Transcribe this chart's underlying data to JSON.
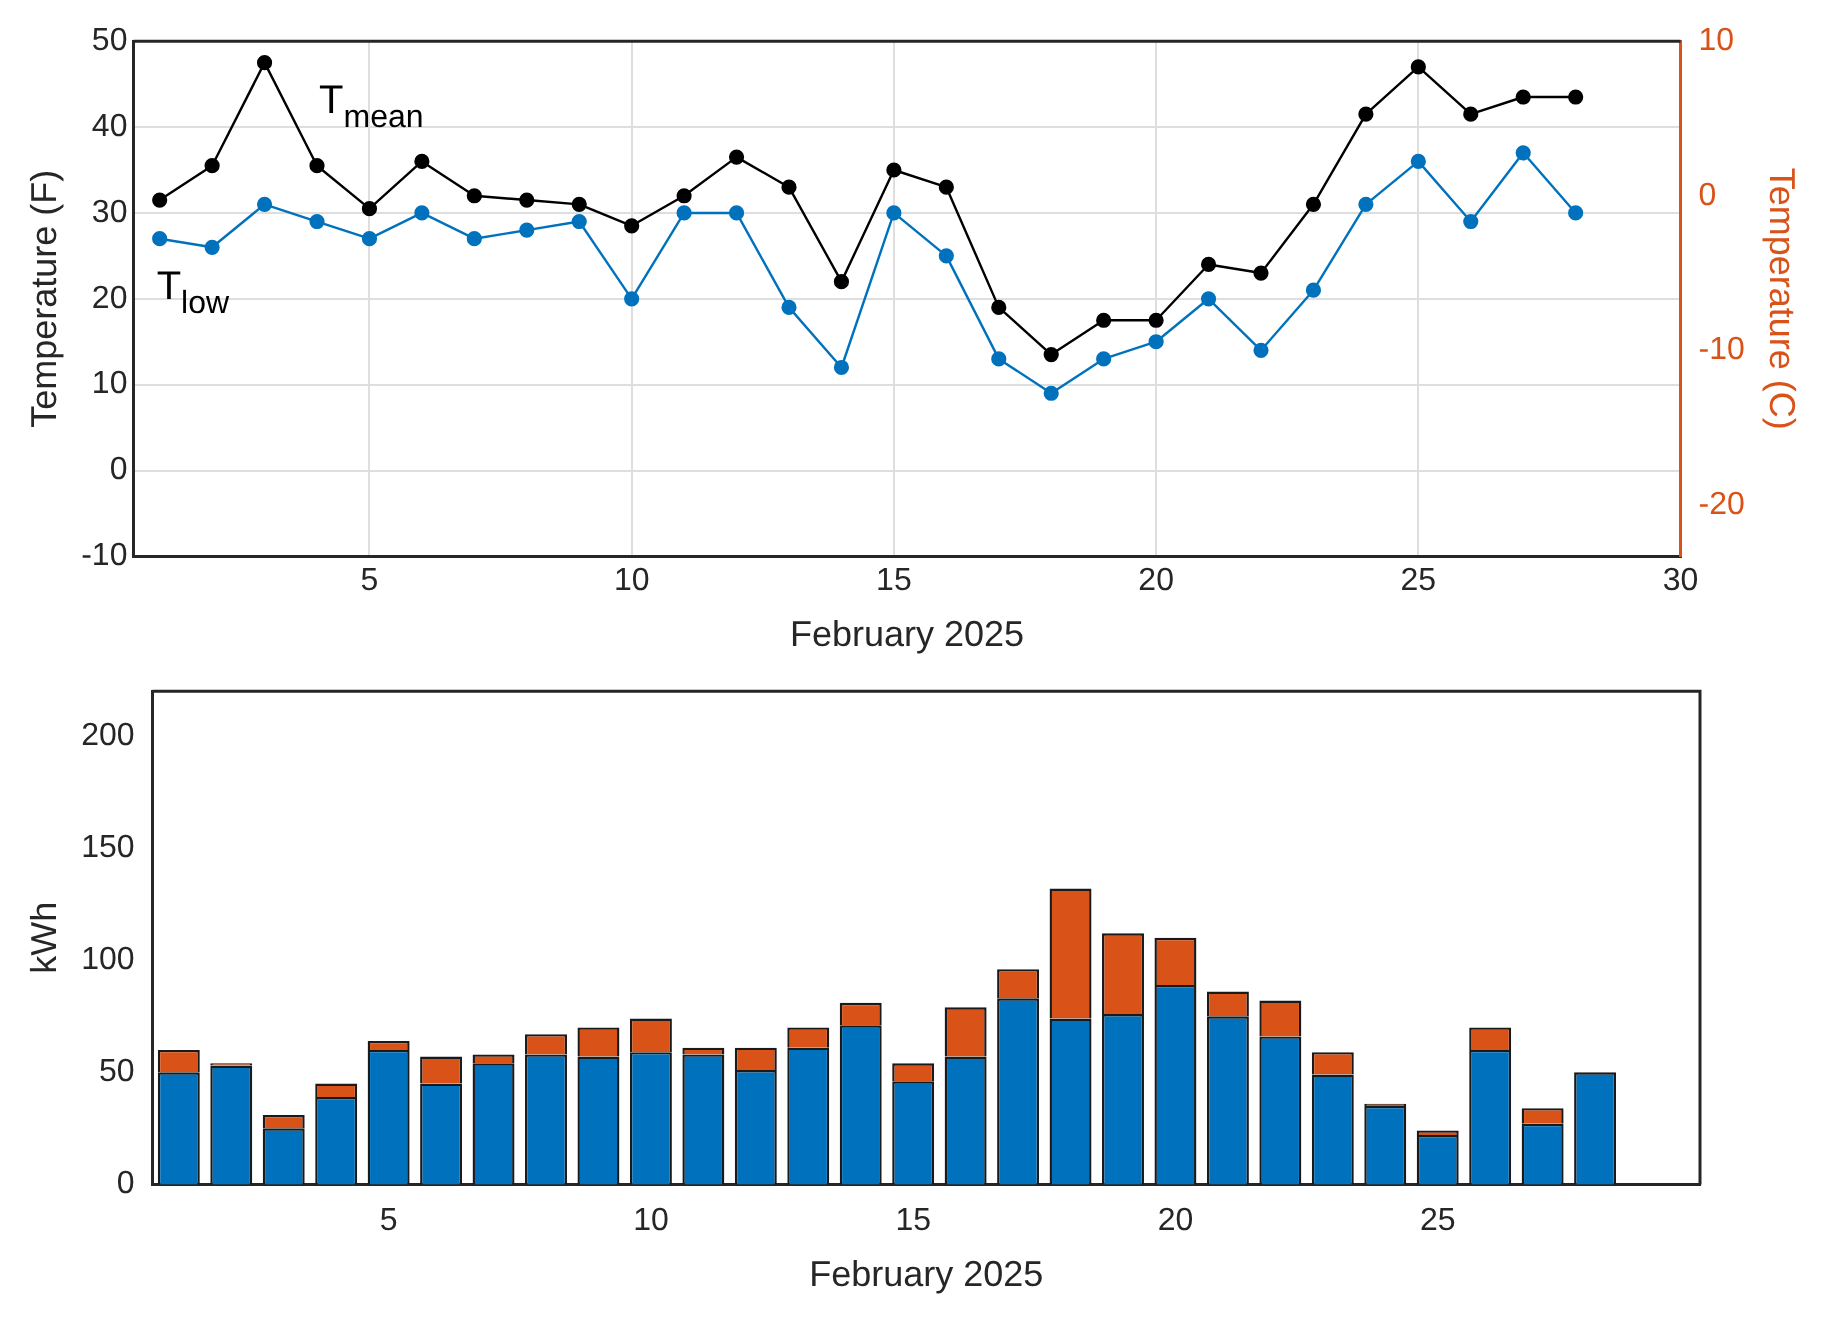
{
  "chart_data": [
    {
      "type": "line",
      "xlabel": "February 2025",
      "ylabel": "Temperature (F)",
      "y2label": "Temperature (C)",
      "x": [
        1,
        2,
        3,
        4,
        5,
        6,
        7,
        8,
        9,
        10,
        11,
        12,
        13,
        14,
        15,
        16,
        17,
        18,
        19,
        20,
        21,
        22,
        23,
        24,
        25,
        26,
        27,
        28
      ],
      "xlim": [
        0.5,
        30
      ],
      "xticks": [
        5,
        10,
        15,
        20,
        25,
        30
      ],
      "ylim": [
        -10,
        50
      ],
      "yticks": [
        -10,
        0,
        10,
        20,
        30,
        40,
        50
      ],
      "y2lim": [
        -23.33,
        10
      ],
      "y2ticks": [
        -20,
        -10,
        0,
        10
      ],
      "grid": true,
      "legend": false,
      "marker": "circle",
      "line_style": "solid",
      "series": [
        {
          "name": "T$_{mean}$",
          "color": "#000000",
          "values": [
            31.5,
            35.5,
            47.5,
            35.5,
            30.5,
            36,
            32,
            31.5,
            31,
            28.5,
            32,
            36.5,
            33,
            22,
            35,
            33,
            19,
            13.5,
            17.5,
            17.5,
            24,
            23,
            31,
            41.5,
            47,
            41.5,
            43.5,
            43.5
          ]
        },
        {
          "name": "T$_{low}$",
          "color": "#0072bd",
          "values": [
            27,
            26,
            31,
            29,
            27,
            30,
            27,
            28,
            29,
            20,
            30,
            30,
            19,
            12,
            30,
            25,
            13,
            9,
            13,
            15,
            20,
            14,
            21,
            31,
            36,
            29,
            37,
            30
          ]
        }
      ]
    },
    {
      "type": "bar",
      "stacked": true,
      "xlabel": "February 2025",
      "ylabel": "kWh",
      "x": [
        1,
        2,
        3,
        4,
        5,
        6,
        7,
        8,
        9,
        10,
        11,
        12,
        13,
        14,
        15,
        16,
        17,
        18,
        19,
        20,
        21,
        22,
        23,
        24,
        25,
        26,
        27,
        28
      ],
      "xlim": [
        0.5,
        30
      ],
      "xticks": [
        5,
        10,
        15,
        20,
        25
      ],
      "ylim": [
        0,
        220
      ],
      "yticks": [
        0,
        50,
        100,
        150,
        200
      ],
      "grid": false,
      "legend": false,
      "series": [
        {
          "color": "#0072bd",
          "values": [
            50,
            53,
            25,
            39,
            60,
            45,
            54,
            58,
            57,
            59,
            58,
            51,
            61,
            71,
            46,
            57,
            83,
            74,
            76,
            89,
            75,
            66,
            49,
            35,
            22,
            60,
            27,
            50
          ]
        },
        {
          "color": "#d95319",
          "values": [
            10,
            1,
            6,
            6,
            4,
            12,
            4,
            9,
            13,
            15,
            3,
            10,
            9,
            10,
            8,
            22,
            13,
            58,
            36,
            21,
            11,
            16,
            10,
            1,
            2,
            10,
            7,
            0
          ]
        }
      ]
    }
  ]
}
